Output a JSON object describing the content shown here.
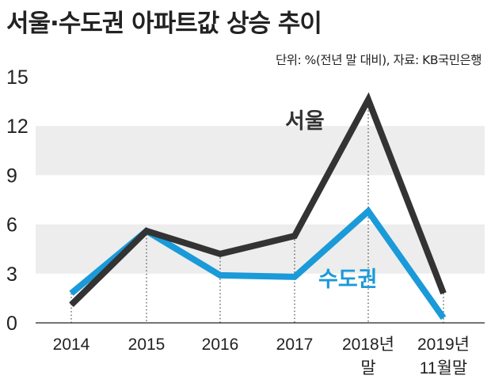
{
  "title": "서울·수도권 아파트값 상승 추이",
  "note": "단위: %(전년 말 대비), 자료: KB국민은행",
  "chart_data": {
    "type": "line",
    "title": "서울·수도권 아파트값 상승 추이",
    "unit_note": "단위: %(전년 말 대비)",
    "source": "자료: KB국민은행",
    "categories": [
      [
        "2014"
      ],
      [
        "2015"
      ],
      [
        "2016"
      ],
      [
        "2017"
      ],
      [
        "2018년",
        "말"
      ],
      [
        "2019년",
        "11월말"
      ]
    ],
    "series": [
      {
        "name": "서울",
        "color": "#333333",
        "values": [
          1.1,
          5.6,
          4.2,
          5.3,
          13.6,
          1.8
        ]
      },
      {
        "name": "수도권",
        "color": "#1a9ad9",
        "values": [
          1.8,
          5.6,
          2.9,
          2.8,
          6.8,
          0.3
        ]
      }
    ],
    "yticks": [
      "0",
      "3",
      "6",
      "9",
      "12",
      "15"
    ],
    "ylim": [
      0,
      15
    ],
    "grid": "alternating horizontal bands",
    "xlabel": "",
    "ylabel": ""
  }
}
